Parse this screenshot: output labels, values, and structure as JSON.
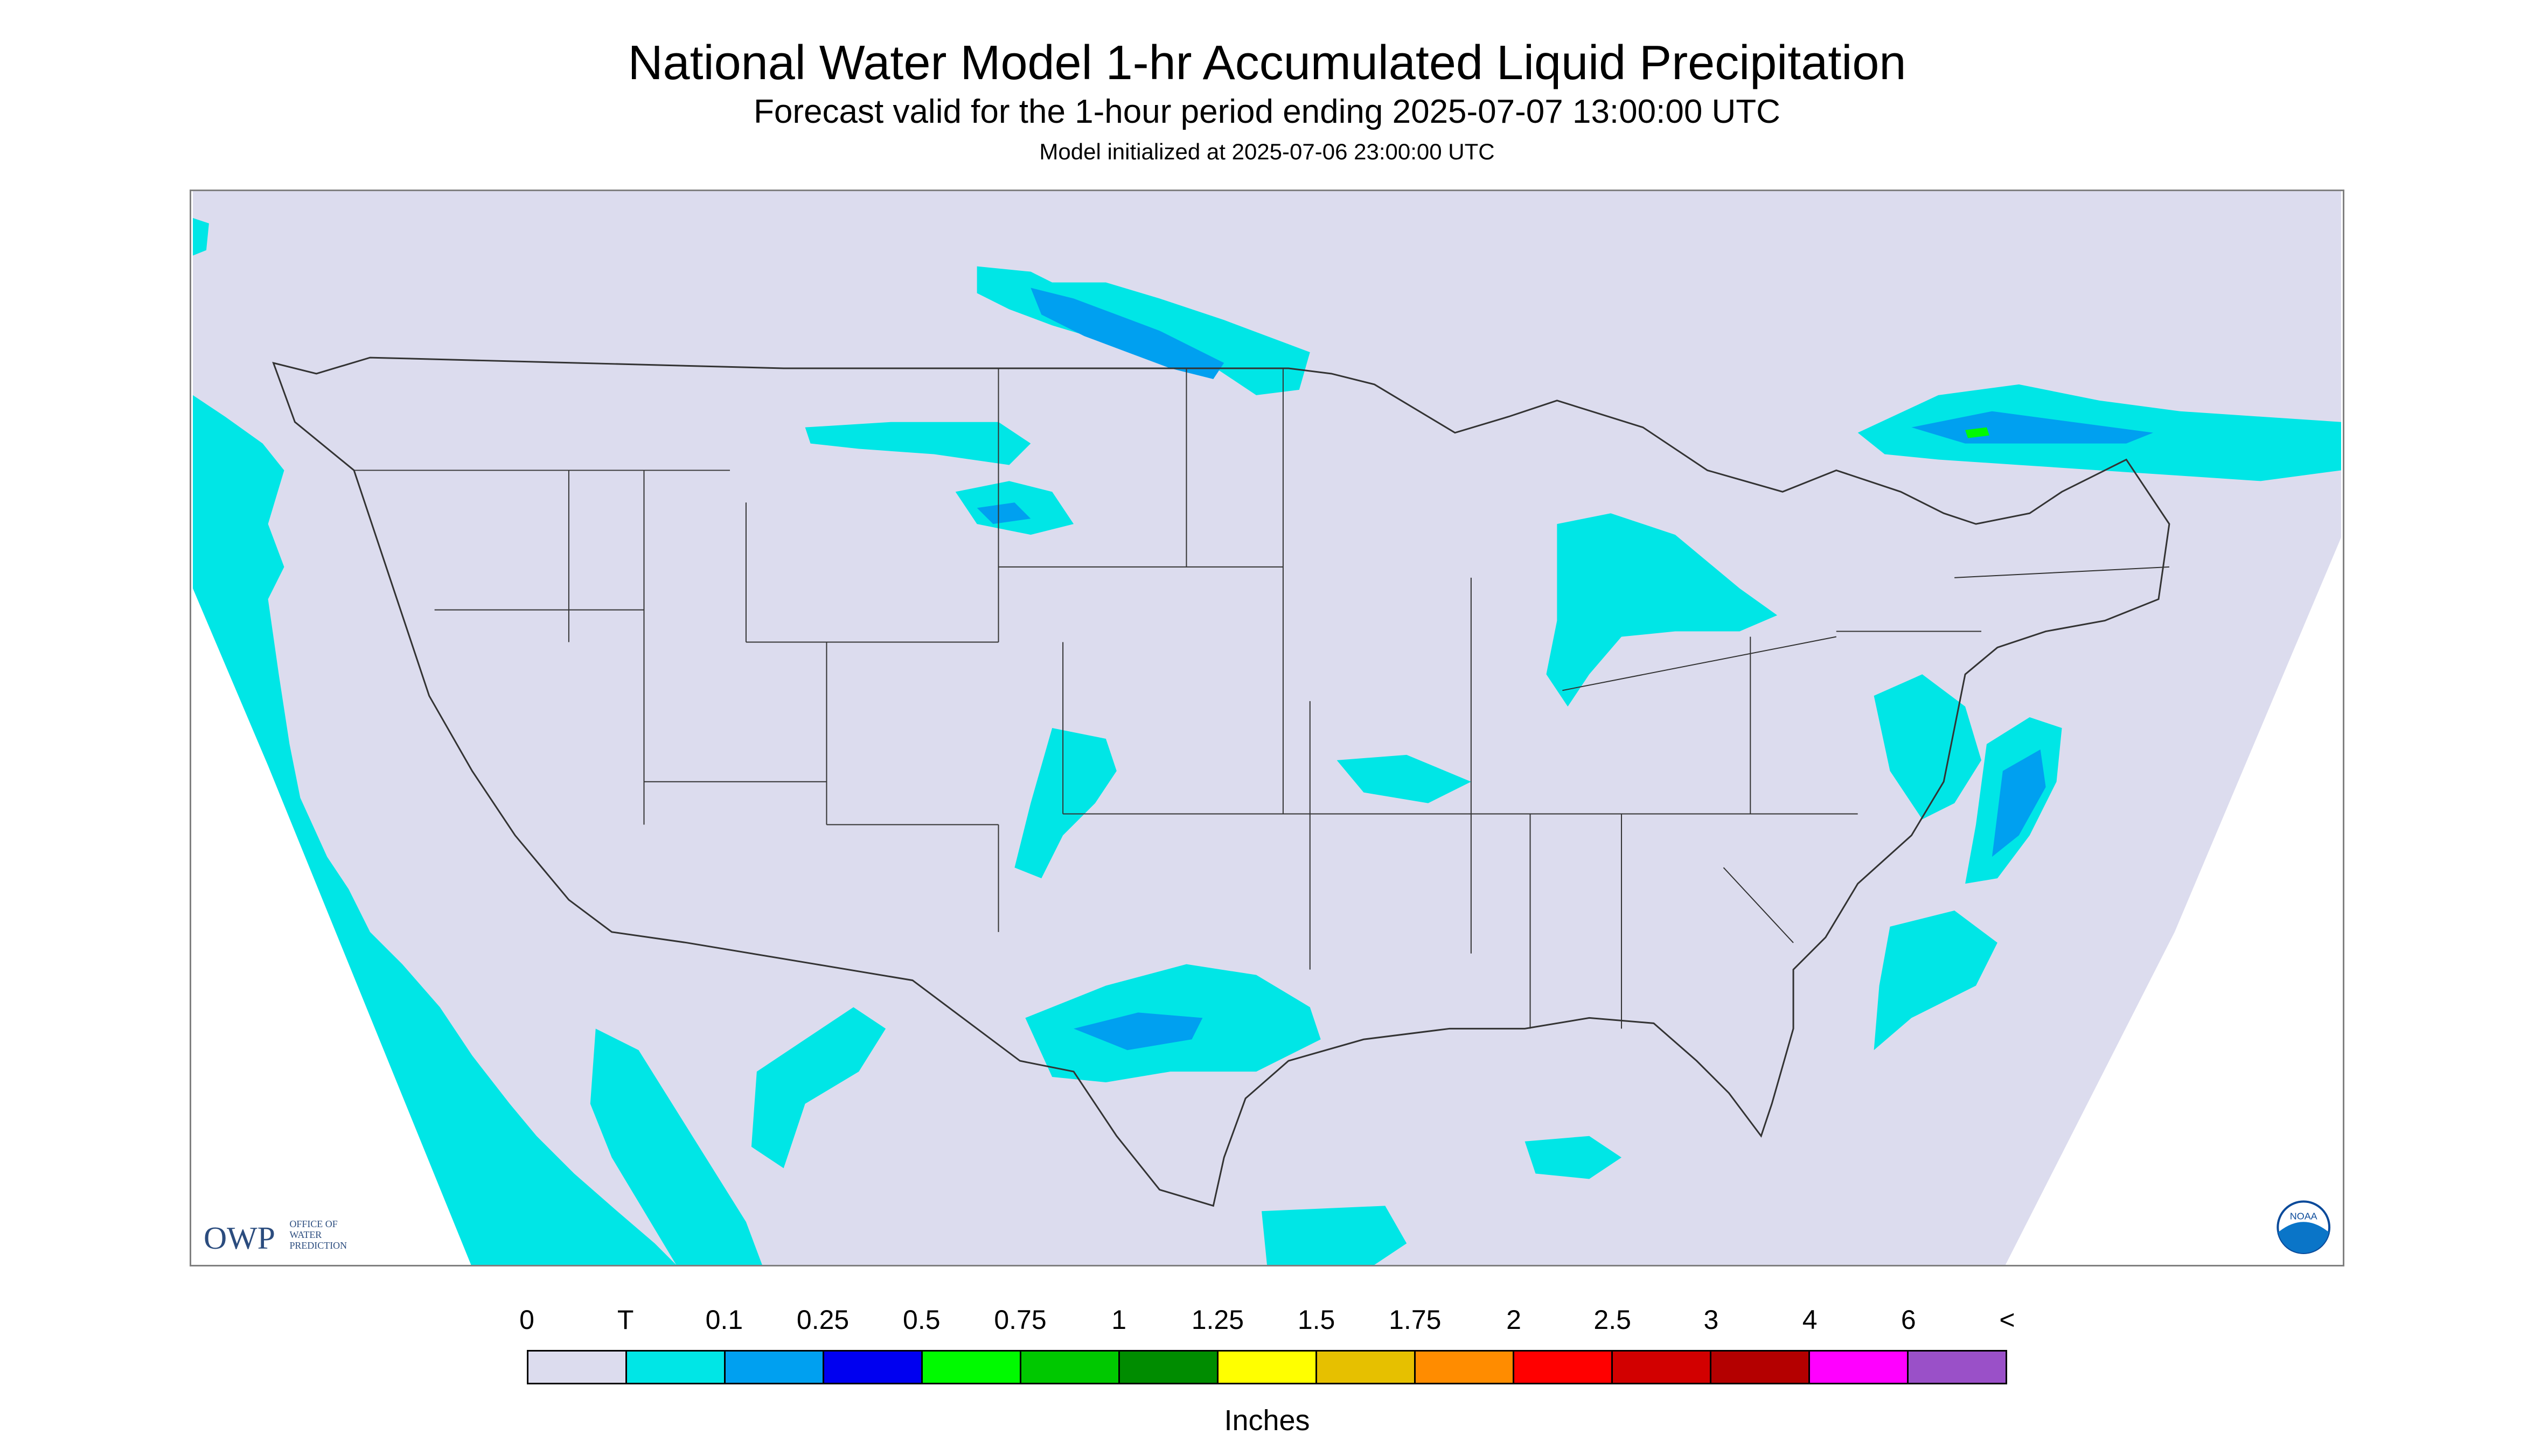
{
  "header": {
    "title": "National Water Model 1-hr Accumulated Liquid Precipitation",
    "subtitle": "Forecast valid for the 1-hour period ending 2025-07-07 13:00:00 UTC",
    "init_line": "Model initialized at 2025-07-06 23:00:00 UTC"
  },
  "map": {
    "region": "Contiguous United States",
    "background_color": "#dcdcee",
    "outside_domain_color": "#ffffff",
    "boundary_color": "#333333",
    "logos": {
      "owp_mark": "OWP",
      "owp_lines": [
        "OFFICE OF",
        "WATER",
        "PREDICTION"
      ],
      "noaa": "NOAA"
    }
  },
  "legend": {
    "labels": [
      "0",
      "T",
      "0.1",
      "0.25",
      "0.5",
      "0.75",
      "1",
      "1.25",
      "1.5",
      "1.75",
      "2",
      "2.5",
      "3",
      "4",
      "6",
      "<"
    ],
    "colors": [
      "#dcdcee",
      "#00e6e6",
      "#00a0f0",
      "#0000f0",
      "#00fa00",
      "#00c800",
      "#008c00",
      "#ffff00",
      "#e6c000",
      "#ff8c00",
      "#ff0000",
      "#d20000",
      "#b40000",
      "#ff00ff",
      "#9a50c8"
    ],
    "units": "Inches"
  }
}
